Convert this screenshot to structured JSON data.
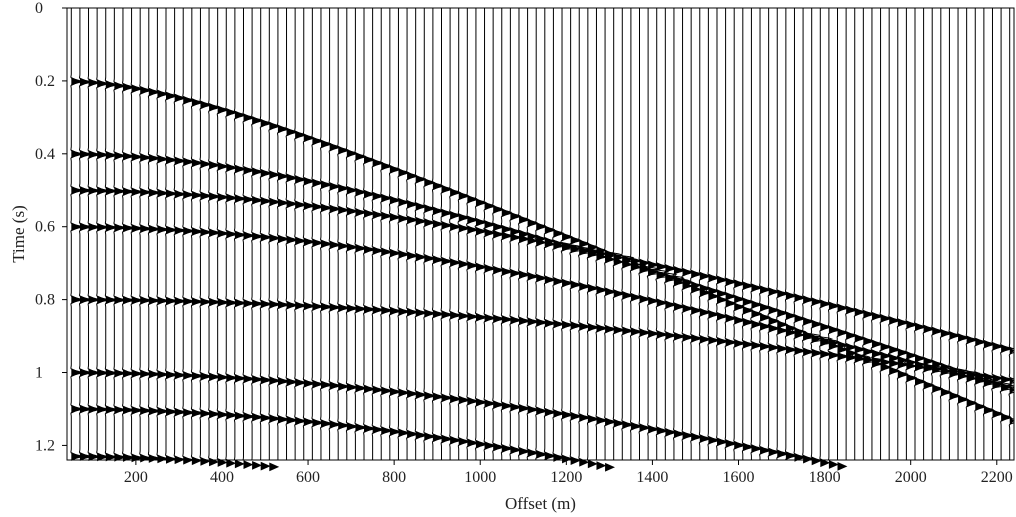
{
  "chart_data": {
    "type": "seismic-wiggle",
    "xlabel": "Offset (m)",
    "ylabel": "Time (s)",
    "xlim": [
      40,
      2240
    ],
    "ylim": [
      0,
      1.24
    ],
    "y_inverted": true,
    "xticks": [
      200,
      400,
      600,
      800,
      1000,
      1200,
      1400,
      1600,
      1800,
      2000,
      2200
    ],
    "yticks": [
      0,
      0.2,
      0.4,
      0.6,
      0.8,
      1,
      1.2
    ],
    "ytick_labels": [
      "0",
      "0.2",
      "0.4",
      "0.6",
      "0.8",
      "1",
      "1.2"
    ],
    "trace_offsets": {
      "start": 50,
      "end": 2240,
      "step": 20
    },
    "events": [
      {
        "t0": 0.2,
        "v": 2000
      },
      {
        "t0": 0.4,
        "v": 2300
      },
      {
        "t0": 0.5,
        "v": 2800
      },
      {
        "t0": 0.6,
        "v": 2600
      },
      {
        "t0": 0.8,
        "v": 3500
      },
      {
        "t0": 1.0,
        "v": 2400
      },
      {
        "t0": 1.1,
        "v": 2100
      },
      {
        "t0": 1.23,
        "v": 1900
      }
    ],
    "colors": {
      "trace": "#000000",
      "background": "#ffffff",
      "text": "#222222"
    }
  }
}
